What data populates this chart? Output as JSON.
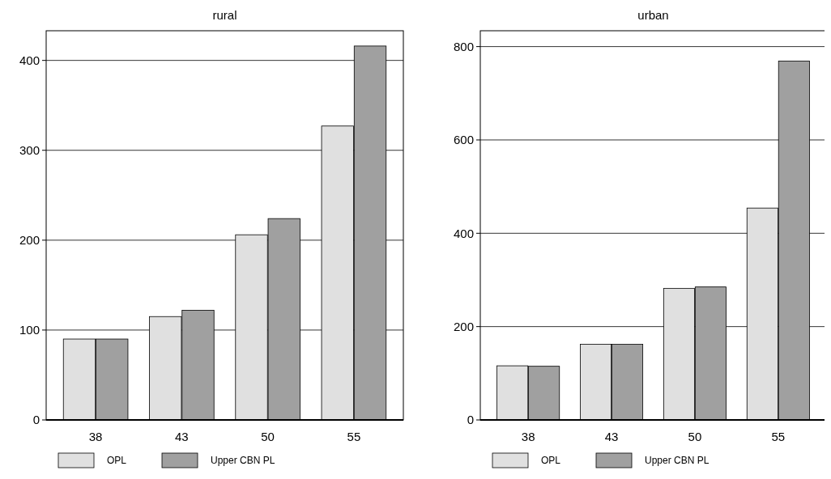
{
  "chart_data": [
    {
      "type": "bar",
      "title": "rural",
      "categories": [
        "38",
        "43",
        "50",
        "55"
      ],
      "series": [
        {
          "name": "OPL",
          "color": "#e0e0e0",
          "values": [
            90,
            115,
            206,
            327
          ]
        },
        {
          "name": "Upper CBN PL",
          "color": "#a0a0a0",
          "values": [
            90,
            122,
            224,
            416
          ]
        }
      ],
      "ylim": [
        0,
        433
      ],
      "yticks": [
        0,
        100,
        200,
        300,
        400
      ],
      "grid": "y",
      "legend": "bottom"
    },
    {
      "type": "bar",
      "title": "urban",
      "categories": [
        "38",
        "43",
        "50",
        "55"
      ],
      "series": [
        {
          "name": "OPL",
          "color": "#e0e0e0",
          "values": [
            116,
            162,
            282,
            454
          ]
        },
        {
          "name": "Upper CBN PL",
          "color": "#a0a0a0",
          "values": [
            115,
            162,
            285,
            769
          ]
        }
      ],
      "ylim": [
        0,
        834
      ],
      "yticks": [
        0,
        200,
        400,
        600,
        800
      ],
      "grid": "y",
      "legend": "bottom"
    }
  ]
}
